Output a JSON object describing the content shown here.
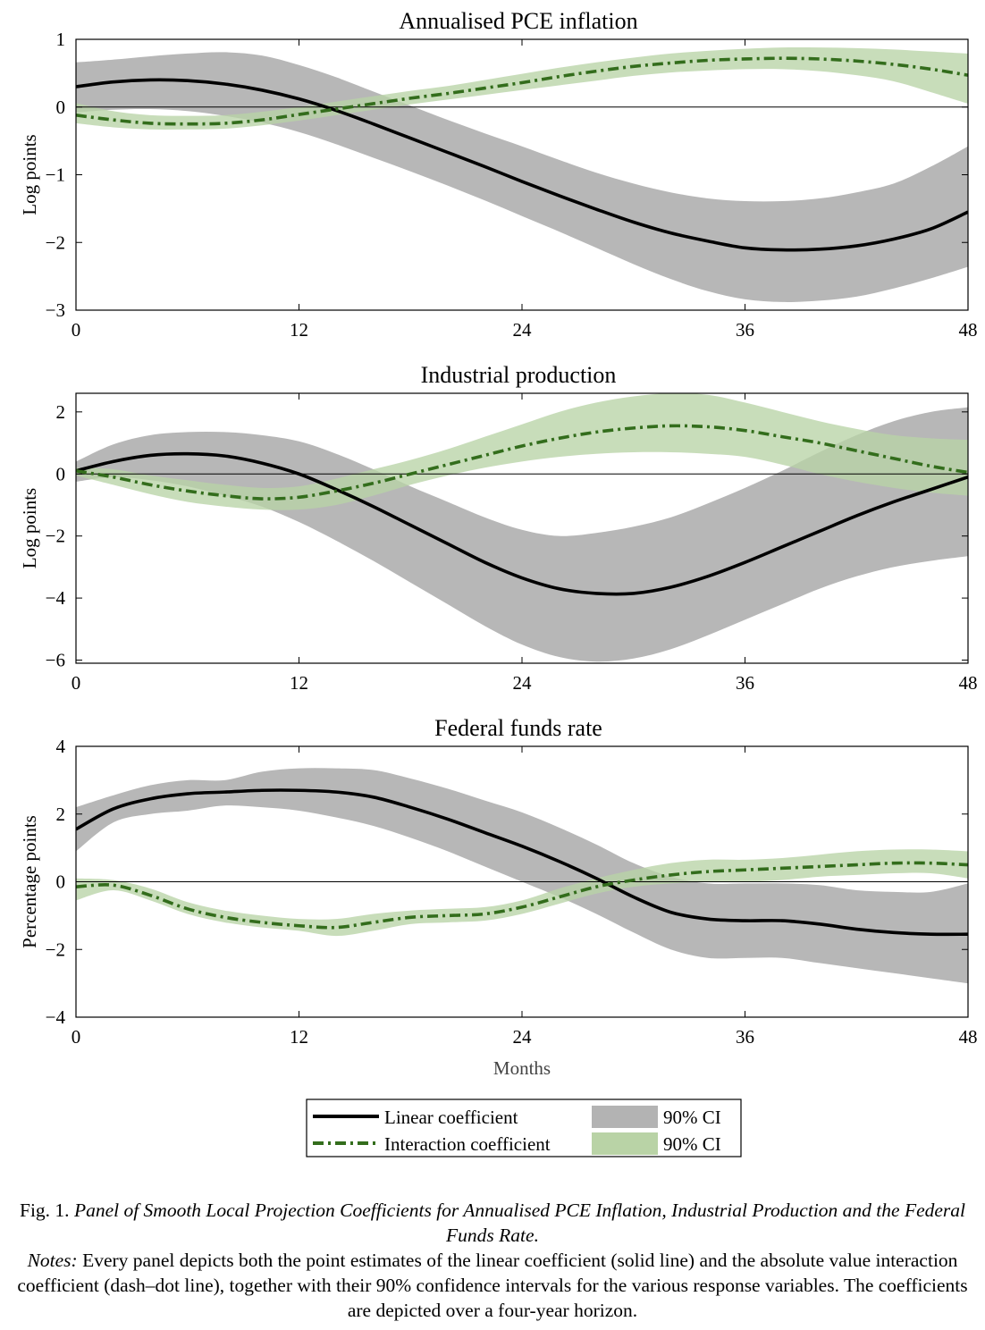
{
  "chart_data": [
    {
      "type": "line",
      "title": "Annualised PCE inflation",
      "xlabel": "",
      "ylabel": "Log points",
      "xlim": [
        0,
        48
      ],
      "ylim": [
        -3,
        1
      ],
      "xticks": [
        "0",
        "12",
        "24",
        "36",
        "48"
      ],
      "yticks": [
        "−3",
        "−2",
        "−1",
        "0",
        "1"
      ],
      "x": [
        0,
        2,
        4,
        6,
        8,
        10,
        12,
        14,
        16,
        18,
        20,
        22,
        24,
        26,
        28,
        30,
        32,
        34,
        36,
        38,
        40,
        42,
        44,
        46,
        48
      ],
      "series": [
        {
          "name": "Linear coefficient",
          "values": [
            0.3,
            0.37,
            0.4,
            0.39,
            0.34,
            0.25,
            0.12,
            -0.05,
            -0.25,
            -0.46,
            -0.67,
            -0.88,
            -1.1,
            -1.31,
            -1.51,
            -1.7,
            -1.86,
            -1.98,
            -2.08,
            -2.11,
            -2.1,
            -2.05,
            -1.95,
            -1.8,
            -1.55
          ],
          "lower": [
            -0.08,
            -0.04,
            -0.03,
            -0.06,
            -0.13,
            -0.23,
            -0.37,
            -0.55,
            -0.75,
            -0.95,
            -1.16,
            -1.38,
            -1.61,
            -1.84,
            -2.08,
            -2.32,
            -2.54,
            -2.72,
            -2.84,
            -2.88,
            -2.86,
            -2.8,
            -2.68,
            -2.53,
            -2.36
          ],
          "upper": [
            0.66,
            0.7,
            0.75,
            0.79,
            0.81,
            0.76,
            0.62,
            0.44,
            0.23,
            0.02,
            -0.19,
            -0.39,
            -0.58,
            -0.78,
            -0.97,
            -1.13,
            -1.26,
            -1.35,
            -1.39,
            -1.39,
            -1.35,
            -1.26,
            -1.13,
            -0.88,
            -0.58
          ]
        },
        {
          "name": "Interaction coefficient",
          "values": [
            -0.12,
            -0.19,
            -0.24,
            -0.25,
            -0.24,
            -0.19,
            -0.11,
            -0.03,
            0.05,
            0.13,
            0.2,
            0.28,
            0.36,
            0.45,
            0.53,
            0.6,
            0.65,
            0.69,
            0.71,
            0.72,
            0.71,
            0.68,
            0.63,
            0.56,
            0.47
          ],
          "lower": [
            -0.24,
            -0.3,
            -0.33,
            -0.33,
            -0.32,
            -0.27,
            -0.2,
            -0.12,
            -0.04,
            0.04,
            0.11,
            0.18,
            0.25,
            0.32,
            0.39,
            0.46,
            0.51,
            0.54,
            0.56,
            0.56,
            0.53,
            0.47,
            0.38,
            0.22,
            0.05
          ],
          "upper": [
            0.06,
            -0.06,
            -0.12,
            -0.13,
            -0.12,
            -0.07,
            0.0,
            0.08,
            0.16,
            0.24,
            0.31,
            0.4,
            0.49,
            0.58,
            0.66,
            0.73,
            0.79,
            0.83,
            0.86,
            0.88,
            0.88,
            0.87,
            0.85,
            0.82,
            0.79
          ]
        }
      ]
    },
    {
      "type": "line",
      "title": "Industrial production",
      "xlabel": "",
      "ylabel": "Log points",
      "xlim": [
        0,
        48
      ],
      "ylim": [
        -6.1,
        2.6
      ],
      "xticks": [
        "0",
        "12",
        "24",
        "36",
        "48"
      ],
      "yticks": [
        "−6",
        "−4",
        "−2",
        "0",
        "2"
      ],
      "x": [
        0,
        2,
        4,
        6,
        8,
        10,
        12,
        14,
        16,
        18,
        20,
        22,
        24,
        26,
        28,
        30,
        32,
        34,
        36,
        38,
        40,
        42,
        44,
        46,
        48
      ],
      "series": [
        {
          "name": "Linear coefficient",
          "values": [
            0.1,
            0.4,
            0.6,
            0.65,
            0.58,
            0.35,
            0.0,
            -0.5,
            -1.05,
            -1.65,
            -2.25,
            -2.85,
            -3.35,
            -3.7,
            -3.85,
            -3.85,
            -3.65,
            -3.3,
            -2.85,
            -2.35,
            -1.85,
            -1.35,
            -0.9,
            -0.5,
            -0.1
          ],
          "lower": [
            -0.25,
            -0.1,
            -0.2,
            -0.4,
            -0.7,
            -1.05,
            -1.55,
            -2.15,
            -2.8,
            -3.5,
            -4.2,
            -4.9,
            -5.5,
            -5.9,
            -6.05,
            -5.95,
            -5.65,
            -5.2,
            -4.7,
            -4.2,
            -3.7,
            -3.3,
            -3.0,
            -2.8,
            -2.65
          ],
          "upper": [
            0.4,
            0.95,
            1.25,
            1.35,
            1.35,
            1.25,
            1.05,
            0.65,
            0.15,
            -0.4,
            -0.9,
            -1.4,
            -1.8,
            -2.0,
            -1.9,
            -1.7,
            -1.4,
            -0.95,
            -0.45,
            0.1,
            0.7,
            1.25,
            1.7,
            2.0,
            2.15
          ]
        },
        {
          "name": "Interaction coefficient",
          "values": [
            0.1,
            -0.1,
            -0.35,
            -0.55,
            -0.7,
            -0.8,
            -0.75,
            -0.55,
            -0.3,
            0.0,
            0.3,
            0.6,
            0.9,
            1.15,
            1.35,
            1.48,
            1.55,
            1.52,
            1.4,
            1.2,
            1.0,
            0.75,
            0.5,
            0.25,
            0.05
          ],
          "lower": [
            -0.05,
            -0.35,
            -0.65,
            -0.9,
            -1.05,
            -1.15,
            -1.15,
            -1.0,
            -0.7,
            -0.35,
            -0.05,
            0.2,
            0.4,
            0.55,
            0.65,
            0.7,
            0.7,
            0.65,
            0.55,
            0.3,
            0.0,
            -0.25,
            -0.45,
            -0.6,
            -0.7
          ],
          "upper": [
            0.2,
            0.15,
            -0.05,
            -0.2,
            -0.35,
            -0.45,
            -0.4,
            -0.15,
            0.15,
            0.45,
            0.8,
            1.2,
            1.6,
            2.0,
            2.3,
            2.5,
            2.6,
            2.55,
            2.3,
            2.0,
            1.7,
            1.45,
            1.25,
            1.15,
            1.1
          ]
        }
      ]
    },
    {
      "type": "line",
      "title": "Federal funds rate",
      "xlabel": "Months",
      "ylabel": "Percentage points",
      "xlim": [
        0,
        48
      ],
      "ylim": [
        -4,
        4
      ],
      "xticks": [
        "0",
        "12",
        "24",
        "36",
        "48"
      ],
      "yticks": [
        "−4",
        "−2",
        "0",
        "2",
        "4"
      ],
      "x": [
        0,
        2,
        4,
        6,
        8,
        10,
        12,
        14,
        16,
        18,
        20,
        22,
        24,
        26,
        28,
        30,
        32,
        34,
        36,
        38,
        40,
        42,
        44,
        46,
        48
      ],
      "series": [
        {
          "name": "Linear coefficient",
          "values": [
            1.55,
            2.15,
            2.45,
            2.6,
            2.65,
            2.7,
            2.7,
            2.65,
            2.5,
            2.2,
            1.85,
            1.45,
            1.05,
            0.6,
            0.1,
            -0.45,
            -0.9,
            -1.1,
            -1.15,
            -1.15,
            -1.25,
            -1.4,
            -1.5,
            -1.55,
            -1.55
          ],
          "lower": [
            0.9,
            1.75,
            2.0,
            2.1,
            2.25,
            2.2,
            2.1,
            1.9,
            1.65,
            1.3,
            0.9,
            0.45,
            0.0,
            -0.45,
            -0.95,
            -1.5,
            -2.0,
            -2.25,
            -2.25,
            -2.25,
            -2.4,
            -2.55,
            -2.7,
            -2.85,
            -3.0
          ],
          "upper": [
            2.2,
            2.55,
            2.85,
            3.0,
            3.0,
            3.25,
            3.35,
            3.35,
            3.3,
            3.05,
            2.75,
            2.4,
            2.05,
            1.6,
            1.1,
            0.55,
            0.15,
            -0.05,
            -0.05,
            -0.05,
            -0.1,
            -0.25,
            -0.3,
            -0.3,
            -0.05
          ]
        },
        {
          "name": "Interaction coefficient",
          "values": [
            -0.15,
            -0.1,
            -0.4,
            -0.8,
            -1.05,
            -1.2,
            -1.3,
            -1.35,
            -1.2,
            -1.05,
            -1.0,
            -0.95,
            -0.75,
            -0.45,
            -0.15,
            0.05,
            0.2,
            0.3,
            0.35,
            0.4,
            0.45,
            0.5,
            0.55,
            0.55,
            0.5
          ],
          "lower": [
            -0.55,
            -0.25,
            -0.55,
            -0.95,
            -1.2,
            -1.35,
            -1.45,
            -1.6,
            -1.45,
            -1.25,
            -1.2,
            -1.15,
            -0.95,
            -0.65,
            -0.35,
            -0.15,
            -0.05,
            0.0,
            0.0,
            0.05,
            0.15,
            0.2,
            0.25,
            0.25,
            0.1
          ],
          "upper": [
            0.1,
            0.05,
            -0.2,
            -0.6,
            -0.85,
            -1.0,
            -1.1,
            -1.1,
            -0.95,
            -0.85,
            -0.8,
            -0.75,
            -0.55,
            -0.2,
            0.1,
            0.35,
            0.55,
            0.65,
            0.65,
            0.7,
            0.8,
            0.9,
            0.95,
            0.95,
            0.9
          ]
        }
      ]
    }
  ],
  "legend": {
    "linear_label": "Linear coefficient",
    "interaction_label": "Interaction coefficient",
    "ci_label_linear": "90% CI",
    "ci_label_interaction": "90% CI"
  },
  "colors": {
    "linear_line": "#000000",
    "linear_band": "#b3b3b3",
    "interaction_line": "#336d1c",
    "interaction_band": "#b9d3a6"
  },
  "caption": {
    "prefix": "Fig. 1.",
    "title": "Panel of Smooth Local Projection Coefficients for Annualised PCE Inflation, Industrial Production and the Federal Funds Rate.",
    "notes_label": "Notes:",
    "notes_text": "Every panel depicts both the point estimates of the linear coefficient (solid line) and the absolute value interaction coefficient (dash–dot line), together with their 90% confidence intervals for the various response variables. The coefficients are depicted over a four-year horizon."
  }
}
